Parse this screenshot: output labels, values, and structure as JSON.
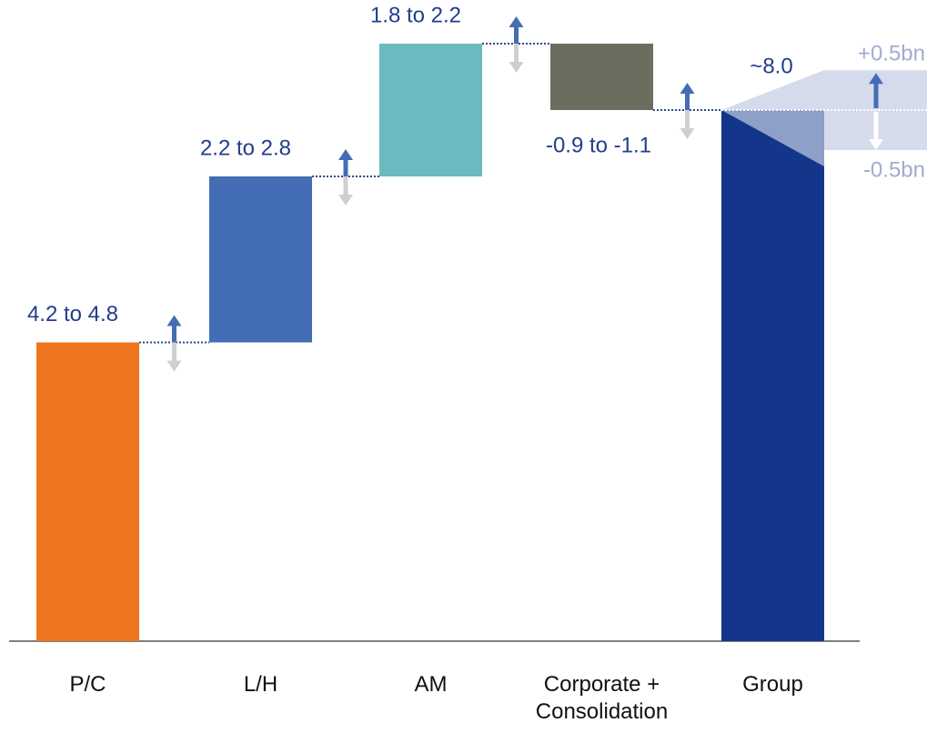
{
  "chart_data": {
    "type": "waterfall",
    "categories": [
      "P/C",
      "L/H",
      "AM",
      "Corporate + Consolidation",
      "Group"
    ],
    "values": [
      4.5,
      2.5,
      2.0,
      -1.0,
      8.0
    ],
    "value_labels": [
      "4.2 to 4.8",
      "2.2 to 2.8",
      "1.8 to 2.2",
      "-0.9 to -1.1",
      "~8.0"
    ],
    "totals": [
      false,
      false,
      false,
      false,
      true
    ],
    "colors": [
      "#f07520",
      "#436db5",
      "#6bbabf",
      "#6b6e5e",
      "#13368a"
    ],
    "group_range": {
      "values": [
        0.5,
        -0.5
      ],
      "labels": [
        "+0.5bn",
        "-0.5bn"
      ]
    }
  }
}
